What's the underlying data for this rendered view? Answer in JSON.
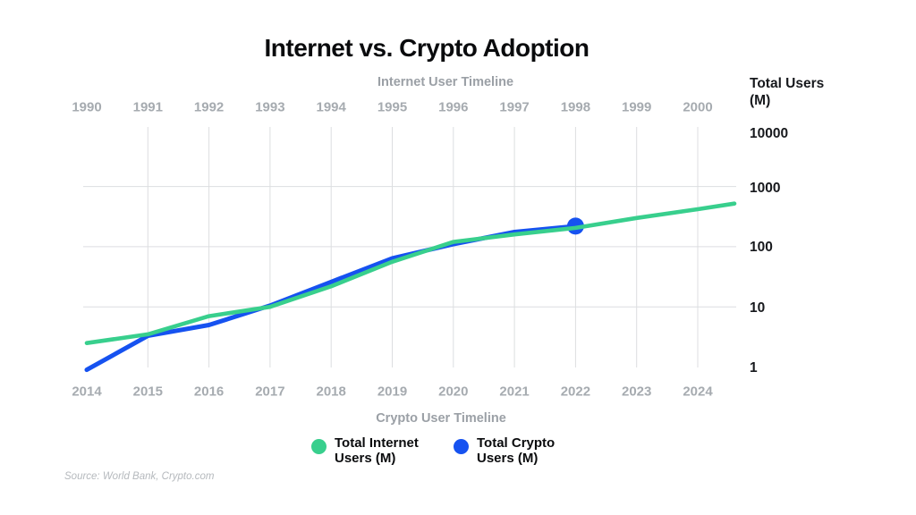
{
  "title": "Internet vs. Crypto Adoption",
  "top_axis": {
    "label": "Internet User Timeline",
    "ticks": [
      "1990",
      "1991",
      "1992",
      "1993",
      "1994",
      "1995",
      "1996",
      "1997",
      "1998",
      "1999",
      "2000"
    ]
  },
  "bottom_axis": {
    "label": "Crypto User Timeline",
    "ticks": [
      "2014",
      "2015",
      "2016",
      "2017",
      "2018",
      "2019",
      "2020",
      "2021",
      "2022",
      "2023",
      "2024"
    ]
  },
  "y_axis": {
    "label": "Total Users (M)",
    "ticks": [
      "10000",
      "1000",
      "100",
      "10",
      "1"
    ]
  },
  "legend": [
    {
      "label": "Total Internet Users (M)",
      "color": "#38CF8D"
    },
    {
      "label": "Total Crypto Users (M)",
      "color": "#1652F0"
    }
  ],
  "source": "Source: World Bank, Crypto.com",
  "colors": {
    "background": "#FFFFFF",
    "grid": "#DCDEE0",
    "title": "#0A0B0D",
    "axis_gray": "#A6ABB0",
    "tick_dark": "#17191D",
    "internet_green": "#38CF8D",
    "crypto_blue": "#1652F0",
    "source_gray": "#B5B9BD"
  },
  "chart_data": {
    "type": "line",
    "title": "Internet vs. Crypto Adoption",
    "y_scale": "log",
    "ylabel": "Total Users (M)",
    "ylim": [
      1,
      10000
    ],
    "top_axis_title": "Internet User Timeline",
    "bottom_axis_title": "Crypto User Timeline",
    "top_axis_range": [
      1990,
      2000
    ],
    "bottom_axis_range": [
      2014,
      2024
    ],
    "axis_offset_years": 24,
    "grid": {
      "vertical_years": [
        2015,
        2016,
        2017,
        2018,
        2019,
        2020,
        2021,
        2022,
        2023,
        2024
      ],
      "horizontal_values": [
        1000,
        100,
        10
      ]
    },
    "legend_position": "bottom",
    "series": [
      {
        "name": "Total Internet Users (M)",
        "data_name": "internet-users-line",
        "color": "#38CF8D",
        "axis": "top",
        "z": 2,
        "width": 4.6,
        "years": [
          1990,
          1991,
          1992,
          1993,
          1994,
          1995,
          1996,
          1997,
          1998,
          1999,
          2000
        ],
        "values": [
          2.5,
          3.5,
          7,
          10,
          22,
          56,
          120,
          160,
          205,
          300,
          420
        ],
        "extension": {
          "year": 2000.6,
          "value": 520
        },
        "end_marker": false
      },
      {
        "name": "Total Crypto Users (M)",
        "data_name": "crypto-users-line",
        "color": "#1652F0",
        "axis": "bottom",
        "z": 1,
        "width": 5,
        "years": [
          2014,
          2015,
          2016,
          2017,
          2018,
          2019,
          2020,
          2021,
          2022
        ],
        "values": [
          0.9,
          3.3,
          5,
          10.5,
          26,
          64,
          110,
          175,
          220
        ],
        "end_marker": true
      }
    ]
  }
}
